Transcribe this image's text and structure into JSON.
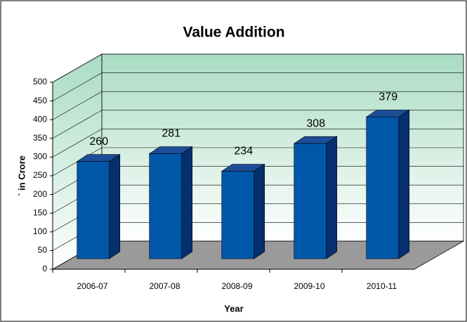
{
  "chart_data": {
    "type": "bar",
    "title": "Value Addition",
    "ylabel": "` in Crore",
    "xlabel": "Year",
    "categories": [
      "2006-07",
      "2007-08",
      "2008-09",
      "2009-10",
      "2010-11"
    ],
    "values": [
      260,
      281,
      234,
      308,
      379
    ],
    "color": "#0057a8",
    "ylim": [
      0,
      500
    ],
    "yticks": [
      0,
      50,
      100,
      150,
      200,
      250,
      300,
      350,
      400,
      450,
      500
    ],
    "grid": true
  }
}
